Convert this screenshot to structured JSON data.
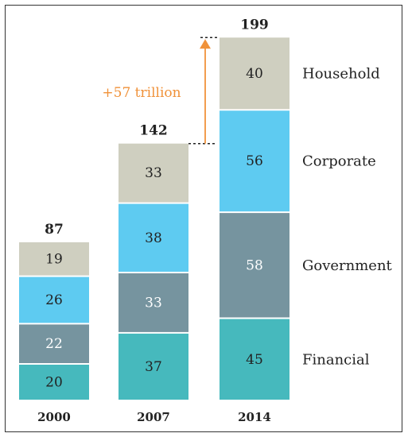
{
  "chart_data": {
    "type": "bar",
    "stacked": true,
    "categories": [
      "2000",
      "2007",
      "2014"
    ],
    "series": [
      {
        "name": "Financial",
        "values": [
          20,
          37,
          45
        ],
        "color": "#46b9bd",
        "text_color": "#222222"
      },
      {
        "name": "Government",
        "values": [
          22,
          33,
          58
        ],
        "color": "#76949f",
        "text_color": "#ffffff"
      },
      {
        "name": "Corporate",
        "values": [
          26,
          38,
          56
        ],
        "color": "#5ecbf1",
        "text_color": "#222222"
      },
      {
        "name": "Household",
        "values": [
          19,
          33,
          40
        ],
        "color": "#cfcfc0",
        "text_color": "#222222"
      }
    ],
    "totals": [
      87,
      142,
      199
    ],
    "annotation": "+57 trillion",
    "annotation_color": "#f0923a"
  }
}
